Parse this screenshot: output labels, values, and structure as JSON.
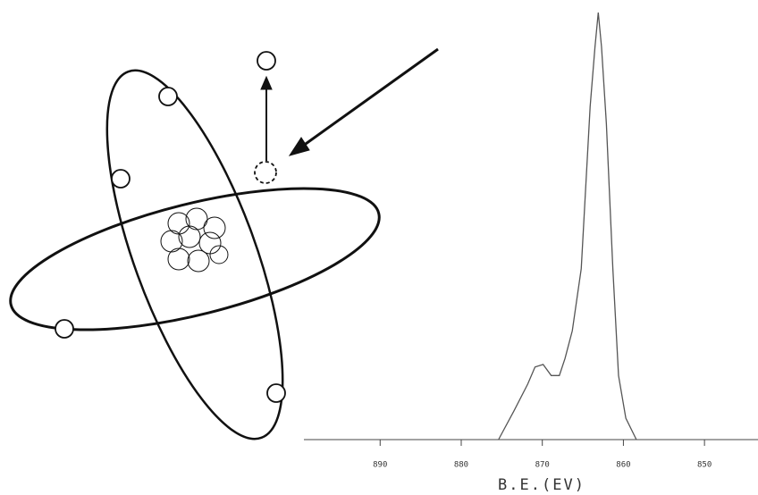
{
  "chart_data": {
    "type": "line",
    "x_label": "B.E.(EV)",
    "x": [
      875.4,
      873.5,
      871.8,
      870.9,
      869.9,
      868.9,
      867.9,
      867.2,
      866.3,
      865.2,
      864.1,
      863.5,
      863.1,
      862.7,
      862.1,
      861.3,
      860.6,
      859.7,
      858.4
    ],
    "values": [
      0,
      6.7,
      13,
      17,
      17.6,
      15,
      15,
      19,
      25.5,
      40,
      78,
      92,
      100,
      92,
      74,
      40,
      15,
      5,
      0
    ],
    "color": "#555",
    "xlim": [
      899.4,
      843.4
    ],
    "xticks": [
      890,
      880,
      870,
      860,
      850
    ],
    "ylim": [
      0,
      100
    ]
  }
}
